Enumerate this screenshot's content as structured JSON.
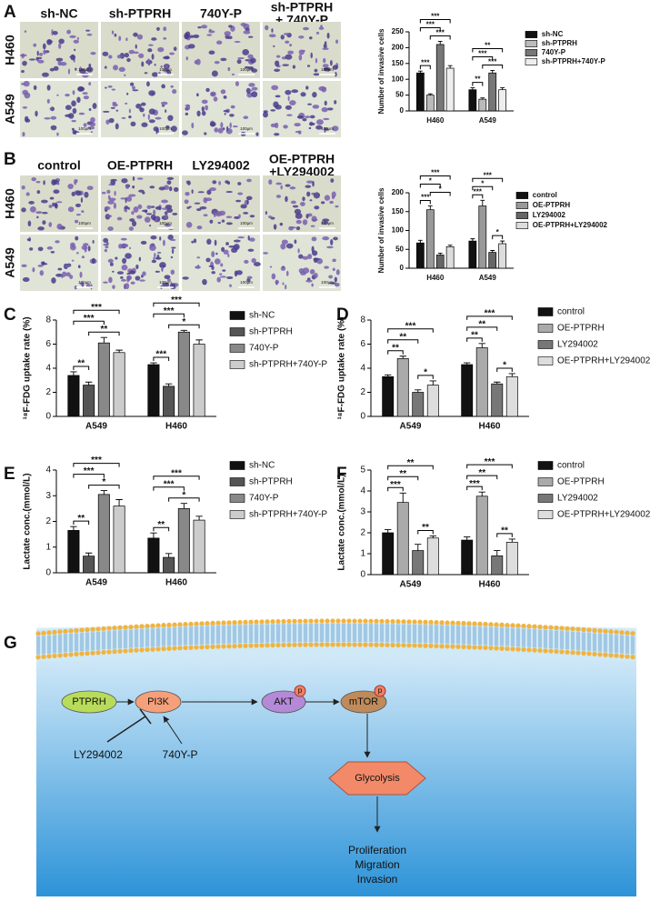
{
  "panel_labels": [
    "A",
    "B",
    "C",
    "D",
    "E",
    "F",
    "G"
  ],
  "micrographs": [
    {
      "columns": [
        [
          "sh-NC"
        ],
        [
          "sh-PTPRH"
        ],
        [
          "740Y-P"
        ],
        [
          "sh-PTPRH",
          "+ 740Y-P"
        ]
      ],
      "rows": [
        "H460",
        "A549"
      ],
      "scale_bar": "100μm"
    },
    {
      "columns": [
        [
          "control"
        ],
        [
          "OE-PTPRH"
        ],
        [
          "LY294002"
        ],
        [
          "OE-PTPRH",
          "+LY294002"
        ]
      ],
      "rows": [
        "H460",
        "A549"
      ],
      "scale_bar": "100μm"
    }
  ],
  "chart_data": [
    {
      "type": "bar",
      "y_label": "Number of invasive cells",
      "categories": [
        "H460",
        "A549"
      ],
      "series": [
        {
          "name": "sh-NC",
          "color": "#111111",
          "values": [
            120,
            67
          ],
          "errors": [
            6,
            6
          ]
        },
        {
          "name": "sh-PTPRH",
          "color": "#bbbbbb",
          "values": [
            50,
            37
          ],
          "errors": [
            4,
            4
          ]
        },
        {
          "name": "740Y-P",
          "color": "#777777",
          "values": [
            210,
            120
          ],
          "errors": [
            10,
            8
          ]
        },
        {
          "name": "sh-PTPRH+740Y-P",
          "color": "#eeeeee",
          "values": [
            135,
            67
          ],
          "errors": [
            8,
            6
          ]
        }
      ],
      "ylim": [
        0,
        250
      ],
      "yticks": [
        0,
        50,
        100,
        150,
        200,
        250
      ],
      "significance": [
        {
          "category": "H460",
          "pair": [
            "sh-NC",
            "sh-PTPRH"
          ],
          "label": "***"
        },
        {
          "category": "H460",
          "pair": [
            "sh-PTPRH",
            "sh-PTPRH+740Y-P"
          ],
          "label": "***"
        },
        {
          "category": "H460",
          "pair": [
            "sh-NC",
            "740Y-P"
          ],
          "label": "***"
        },
        {
          "category": "H460",
          "pair": [
            "sh-NC",
            "sh-PTPRH+740Y-P"
          ],
          "label": "***"
        },
        {
          "category": "A549",
          "pair": [
            "sh-NC",
            "sh-PTPRH"
          ],
          "label": "**"
        },
        {
          "category": "A549",
          "pair": [
            "sh-PTPRH",
            "sh-PTPRH+740Y-P"
          ],
          "label": "***"
        },
        {
          "category": "A549",
          "pair": [
            "sh-NC",
            "740Y-P"
          ],
          "label": "***"
        },
        {
          "category": "A549",
          "pair": [
            "sh-NC",
            "sh-PTPRH+740Y-P"
          ],
          "label": "**"
        }
      ]
    },
    {
      "type": "bar",
      "y_label": "Number of invasive cells",
      "categories": [
        "H460",
        "A549"
      ],
      "series": [
        {
          "name": "control",
          "color": "#111111",
          "values": [
            67,
            72
          ],
          "errors": [
            7,
            6
          ]
        },
        {
          "name": "OE-PTPRH",
          "color": "#999999",
          "values": [
            155,
            165
          ],
          "errors": [
            10,
            15
          ]
        },
        {
          "name": "LY294002",
          "color": "#666666",
          "values": [
            35,
            42
          ],
          "errors": [
            5,
            5
          ]
        },
        {
          "name": "OE-PTPRH+LY294002",
          "color": "#dddddd",
          "values": [
            57,
            65
          ],
          "errors": [
            4,
            7
          ]
        }
      ],
      "ylim": [
        0,
        200
      ],
      "yticks": [
        0,
        50,
        100,
        150,
        200
      ],
      "significance": [
        {
          "category": "H460",
          "pair": [
            "control",
            "OE-PTPRH"
          ],
          "label": "***"
        },
        {
          "category": "H460",
          "pair": [
            "OE-PTPRH",
            "OE-PTPRH+LY294002"
          ],
          "label": "*"
        },
        {
          "category": "H460",
          "pair": [
            "control",
            "LY294002"
          ],
          "label": "*"
        },
        {
          "category": "H460",
          "pair": [
            "control",
            "OE-PTPRH+LY294002"
          ],
          "label": "***"
        },
        {
          "category": "A549",
          "pair": [
            "control",
            "OE-PTPRH"
          ],
          "label": "***"
        },
        {
          "category": "A549",
          "pair": [
            "LY294002",
            "OE-PTPRH+LY294002"
          ],
          "label": "*"
        },
        {
          "category": "A549",
          "pair": [
            "control",
            "LY294002"
          ],
          "label": "*"
        },
        {
          "category": "A549",
          "pair": [
            "control",
            "OE-PTPRH+LY294002"
          ],
          "label": "***"
        }
      ]
    },
    {
      "type": "bar",
      "y_label": "¹⁸F-FDG uptake rate (%)",
      "categories": [
        "A549",
        "H460"
      ],
      "series": [
        {
          "name": "sh-NC",
          "color": "#111111",
          "values": [
            3.4,
            4.3
          ],
          "errors": [
            0.3,
            0.15
          ]
        },
        {
          "name": "sh-PTPRH",
          "color": "#555555",
          "values": [
            2.6,
            2.5
          ],
          "errors": [
            0.25,
            0.2
          ]
        },
        {
          "name": "740Y-P",
          "color": "#888888",
          "values": [
            6.1,
            7.0
          ],
          "errors": [
            0.45,
            0.15
          ]
        },
        {
          "name": "sh-PTPRH+740Y-P",
          "color": "#cccccc",
          "values": [
            5.3,
            6.0
          ],
          "errors": [
            0.2,
            0.35
          ]
        }
      ],
      "ylim": [
        0,
        8
      ],
      "yticks": [
        0,
        2,
        4,
        6,
        8
      ],
      "significance": [
        {
          "category": "A549",
          "pair": [
            "sh-NC",
            "sh-PTPRH"
          ],
          "label": "**"
        },
        {
          "category": "A549",
          "pair": [
            "sh-PTPRH",
            "sh-PTPRH+740Y-P"
          ],
          "label": "**"
        },
        {
          "category": "A549",
          "pair": [
            "sh-NC",
            "740Y-P"
          ],
          "label": "***"
        },
        {
          "category": "A549",
          "pair": [
            "sh-NC",
            "sh-PTPRH+740Y-P"
          ],
          "label": "***"
        },
        {
          "category": "H460",
          "pair": [
            "sh-NC",
            "sh-PTPRH"
          ],
          "label": "***"
        },
        {
          "category": "H460",
          "pair": [
            "sh-PTPRH",
            "sh-PTPRH+740Y-P"
          ],
          "label": "*"
        },
        {
          "category": "H460",
          "pair": [
            "sh-NC",
            "740Y-P"
          ],
          "label": "***"
        },
        {
          "category": "H460",
          "pair": [
            "sh-NC",
            "sh-PTPRH+740Y-P"
          ],
          "label": "***"
        }
      ]
    },
    {
      "type": "bar",
      "y_label": "¹⁸F-FDG uptake rate (%)",
      "categories": [
        "A549",
        "H460"
      ],
      "series": [
        {
          "name": "control",
          "color": "#111111",
          "values": [
            3.3,
            4.3
          ],
          "errors": [
            0.15,
            0.15
          ]
        },
        {
          "name": "OE-PTPRH",
          "color": "#aaaaaa",
          "values": [
            4.8,
            5.7
          ],
          "errors": [
            0.2,
            0.35
          ]
        },
        {
          "name": "LY294002",
          "color": "#777777",
          "values": [
            2.0,
            2.7
          ],
          "errors": [
            0.2,
            0.15
          ]
        },
        {
          "name": "OE-PTPRH+LY294002",
          "color": "#dddddd",
          "values": [
            2.6,
            3.3
          ],
          "errors": [
            0.35,
            0.25
          ]
        }
      ],
      "ylim": [
        0,
        8
      ],
      "yticks": [
        0,
        2,
        4,
        6,
        8
      ],
      "significance": [
        {
          "category": "A549",
          "pair": [
            "control",
            "OE-PTPRH"
          ],
          "label": "**"
        },
        {
          "category": "A549",
          "pair": [
            "LY294002",
            "OE-PTPRH+LY294002"
          ],
          "label": "*"
        },
        {
          "category": "A549",
          "pair": [
            "control",
            "LY294002"
          ],
          "label": "**"
        },
        {
          "category": "A549",
          "pair": [
            "control",
            "OE-PTPRH+LY294002"
          ],
          "label": "***"
        },
        {
          "category": "H460",
          "pair": [
            "control",
            "OE-PTPRH"
          ],
          "label": "**"
        },
        {
          "category": "H460",
          "pair": [
            "LY294002",
            "OE-PTPRH+LY294002"
          ],
          "label": "*"
        },
        {
          "category": "H460",
          "pair": [
            "control",
            "LY294002"
          ],
          "label": "**"
        },
        {
          "category": "H460",
          "pair": [
            "control",
            "OE-PTPRH+LY294002"
          ],
          "label": "***"
        }
      ]
    },
    {
      "type": "bar",
      "y_label": "Lactate conc.(mmol/L)",
      "categories": [
        "A549",
        "H460"
      ],
      "series": [
        {
          "name": "sh-NC",
          "color": "#111111",
          "values": [
            1.65,
            1.35
          ],
          "errors": [
            0.15,
            0.2
          ]
        },
        {
          "name": "sh-PTPRH",
          "color": "#555555",
          "values": [
            0.65,
            0.6
          ],
          "errors": [
            0.12,
            0.15
          ]
        },
        {
          "name": "740Y-P",
          "color": "#888888",
          "values": [
            3.05,
            2.5
          ],
          "errors": [
            0.15,
            0.2
          ]
        },
        {
          "name": "sh-PTPRH+740Y-P",
          "color": "#cccccc",
          "values": [
            2.6,
            2.05
          ],
          "errors": [
            0.25,
            0.15
          ]
        }
      ],
      "ylim": [
        0,
        4
      ],
      "yticks": [
        0,
        1,
        2,
        3,
        4
      ],
      "significance": [
        {
          "category": "A549",
          "pair": [
            "sh-NC",
            "sh-PTPRH"
          ],
          "label": "**"
        },
        {
          "category": "A549",
          "pair": [
            "sh-PTPRH",
            "sh-PTPRH+740Y-P"
          ],
          "label": "*"
        },
        {
          "category": "A549",
          "pair": [
            "sh-NC",
            "740Y-P"
          ],
          "label": "***"
        },
        {
          "category": "A549",
          "pair": [
            "sh-NC",
            "sh-PTPRH+740Y-P"
          ],
          "label": "***"
        },
        {
          "category": "H460",
          "pair": [
            "sh-NC",
            "sh-PTPRH"
          ],
          "label": "**"
        },
        {
          "category": "H460",
          "pair": [
            "sh-PTPRH",
            "sh-PTPRH+740Y-P"
          ],
          "label": "*"
        },
        {
          "category": "H460",
          "pair": [
            "sh-NC",
            "740Y-P"
          ],
          "label": "***"
        },
        {
          "category": "H460",
          "pair": [
            "sh-NC",
            "sh-PTPRH+740Y-P"
          ],
          "label": "***"
        }
      ]
    },
    {
      "type": "bar",
      "y_label": "Lactate conc.(mmol/L)",
      "categories": [
        "A549",
        "H460"
      ],
      "series": [
        {
          "name": "control",
          "color": "#111111",
          "values": [
            2.0,
            1.65
          ],
          "errors": [
            0.15,
            0.15
          ]
        },
        {
          "name": "OE-PTPRH",
          "color": "#aaaaaa",
          "values": [
            3.45,
            3.75
          ],
          "errors": [
            0.45,
            0.2
          ]
        },
        {
          "name": "LY294002",
          "color": "#777777",
          "values": [
            1.15,
            0.9
          ],
          "errors": [
            0.3,
            0.25
          ]
        },
        {
          "name": "OE-PTPRH+LY294002",
          "color": "#dddddd",
          "values": [
            1.75,
            1.55
          ],
          "errors": [
            0.1,
            0.15
          ]
        }
      ],
      "ylim": [
        0,
        5
      ],
      "yticks": [
        0,
        1,
        2,
        3,
        4,
        5
      ],
      "significance": [
        {
          "category": "A549",
          "pair": [
            "control",
            "OE-PTPRH"
          ],
          "label": "***"
        },
        {
          "category": "A549",
          "pair": [
            "LY294002",
            "OE-PTPRH+LY294002"
          ],
          "label": "**"
        },
        {
          "category": "A549",
          "pair": [
            "control",
            "LY294002"
          ],
          "label": "**"
        },
        {
          "category": "A549",
          "pair": [
            "control",
            "OE-PTPRH+LY294002"
          ],
          "label": "**"
        },
        {
          "category": "H460",
          "pair": [
            "control",
            "OE-PTPRH"
          ],
          "label": "***"
        },
        {
          "category": "H460",
          "pair": [
            "LY294002",
            "OE-PTPRH+LY294002"
          ],
          "label": "**"
        },
        {
          "category": "H460",
          "pair": [
            "control",
            "LY294002"
          ],
          "label": "**"
        },
        {
          "category": "H460",
          "pair": [
            "control",
            "OE-PTPRH+LY294002"
          ],
          "label": "***"
        }
      ]
    }
  ],
  "diagram": {
    "nodes": [
      "PTPRH",
      "PI3K",
      "AKT",
      "mTOR",
      "Glycolysis",
      "LY294002",
      "740Y-P"
    ],
    "phospho": "p",
    "outcomes": [
      "Proliferation",
      "Migration",
      "Invasion"
    ]
  }
}
